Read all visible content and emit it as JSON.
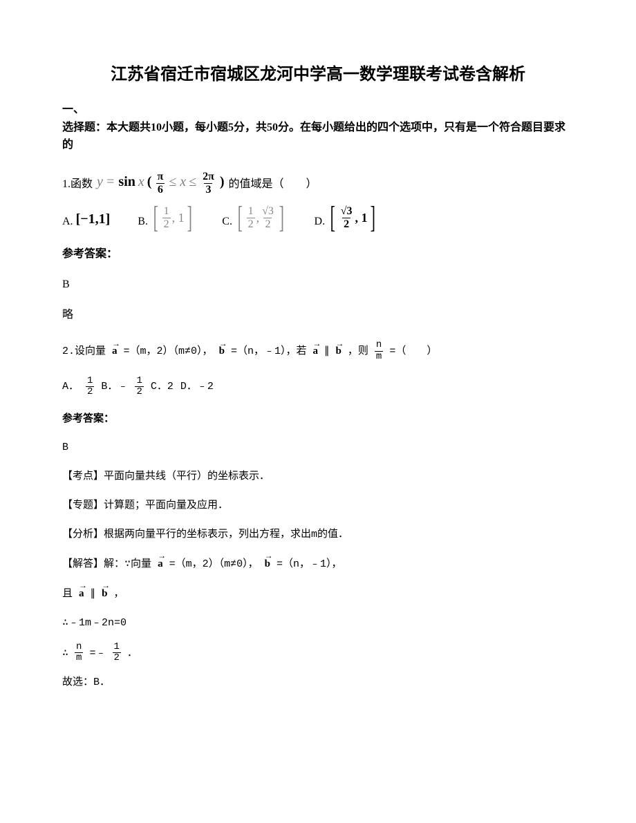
{
  "title": "江苏省宿迁市宿城区龙河中学高一数学理联考试卷含解析",
  "section1_line1": "一、",
  "section1_line2": "选择题：本大题共10小题，每小题5分，共50分。在每小题给出的四个选项中，只有是一个符合题目要求的",
  "q1": {
    "prefix": "1.函数",
    "formula_y": "y",
    "formula_eq": " = ",
    "formula_sin": "sin",
    "formula_x": " x",
    "pi_over_6_num": "π",
    "pi_over_6_den": "6",
    "le1": " ≤ ",
    "x_mid": "x",
    "le2": " ≤ ",
    "two_pi_num": "2π",
    "two_pi_den": "3",
    "suffix": "的值域是（　　）",
    "optA_label": "A.",
    "optA_val": "[−1,1]",
    "optB_label": "B.",
    "optB_num": "1",
    "optB_den": "2",
    "optB_comma": ", 1",
    "optC_label": "C.",
    "optC_n1": "1",
    "optC_d1": "2",
    "optC_comma": ", ",
    "optC_n2": "√3",
    "optC_d2": "2",
    "optD_label": "D.",
    "optD_n1": "√3",
    "optD_d1": "2",
    "optD_comma": ", 1",
    "answer_header": "参考答案：",
    "answer": "B",
    "answer_note": "略"
  },
  "q2": {
    "prefix": "2.设向量",
    "vec_a": "a",
    "eq1": "=（m，2）（m≠0），",
    "vec_b": "b",
    "eq2": "=（n，﹣1），若",
    "vec_a2": "a",
    "par": "∥",
    "vec_b2": "b",
    "then": "，则",
    "frac_n": "n",
    "frac_m": "m",
    "tail": "=（　　）",
    "optA": "A．",
    "optA_n": "1",
    "optA_d": "2",
    "optB": "B．﹣",
    "optB_n": "1",
    "optB_d": "2",
    "optC": "C．2",
    "optD": "D．﹣2",
    "answer_header": "参考答案：",
    "answer": "B",
    "exp1": "【考点】平面向量共线（平行）的坐标表示．",
    "exp2": "【专题】计算题；平面向量及应用．",
    "exp3": "【分析】根据两向量平行的坐标表示，列出方程，求出m的值．",
    "exp4_prefix": "【解答】解：∵向量",
    "exp4_mid": "=（m，2）（m≠0），",
    "exp4_tail": "=（n，﹣1），",
    "exp5_prefix": "且",
    "exp5_tail": "，",
    "exp6": "∴﹣1m﹣2n=0",
    "exp7_prefix": "∴",
    "exp7_n1": "n",
    "exp7_d1": "m",
    "exp7_eq": "=﹣",
    "exp7_n2": "1",
    "exp7_d2": "2",
    "exp7_tail": "．",
    "exp8": "故选：B．"
  }
}
